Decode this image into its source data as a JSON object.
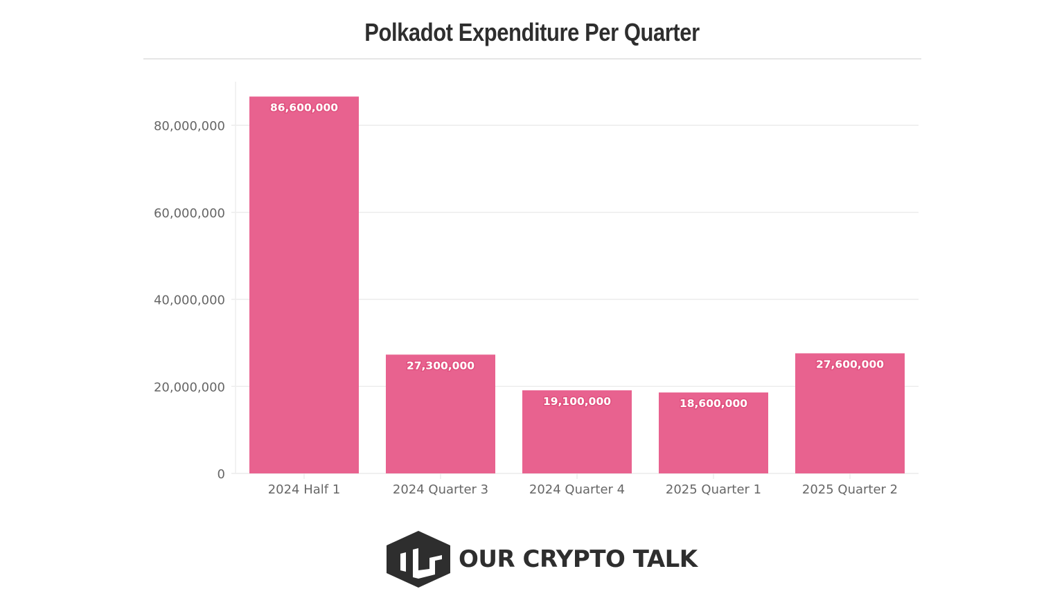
{
  "chart_data": {
    "type": "bar",
    "title": "Polkadot Expenditure Per Quarter",
    "xlabel": "",
    "ylabel": "",
    "categories": [
      "2024 Half 1",
      "2024 Quarter 3",
      "2024 Quarter 4",
      "2025 Quarter 1",
      "2025 Quarter 2"
    ],
    "values": [
      86600000,
      27300000,
      19100000,
      18600000,
      27600000
    ],
    "data_labels": [
      "86,600,000",
      "27,300,000",
      "19,100,000",
      "18,600,000",
      "27,600,000"
    ],
    "ylim": [
      0,
      90000000
    ],
    "yticks": [
      0,
      20000000,
      40000000,
      60000000,
      80000000
    ],
    "ytick_labels": [
      "0",
      "20,000,000",
      "40,000,000",
      "60,000,000",
      "80,000,000"
    ],
    "grid": true,
    "legend": "none",
    "bar_color": "#e8628f"
  },
  "branding": {
    "logo_text": "OUR CRYPTO TALK",
    "logo_icon": "our-crypto-talk-hexagon-icon",
    "logo_color": "#2e2e2e"
  }
}
